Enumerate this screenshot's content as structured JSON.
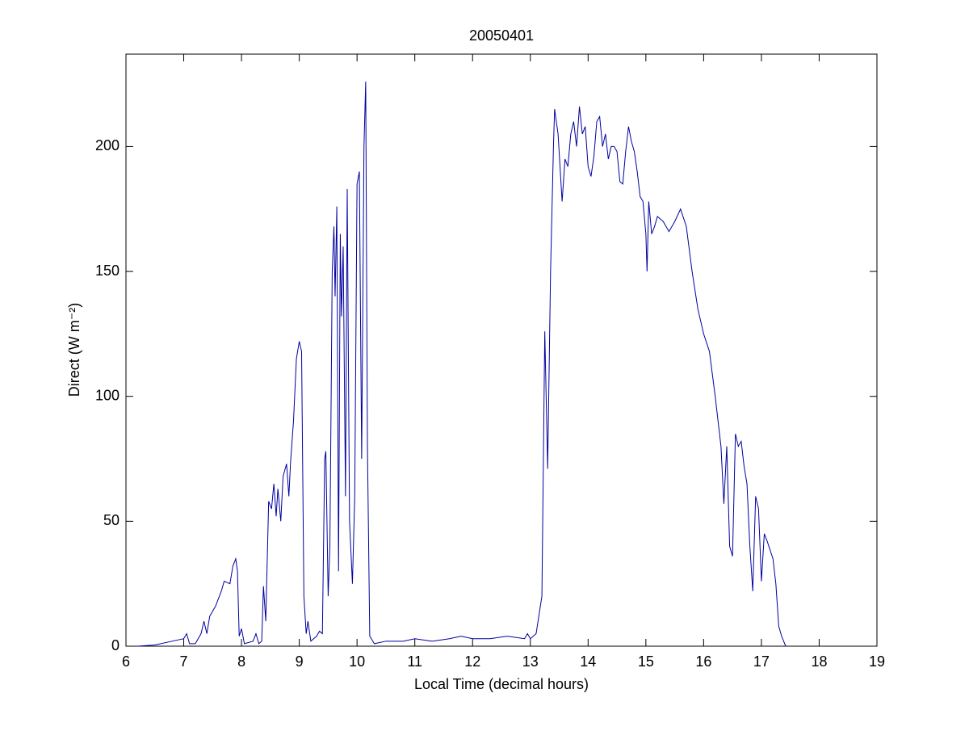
{
  "chart_data": {
    "type": "line",
    "title": "20050401",
    "x_label": "Local Time (decimal hours)",
    "y_label": "Direct (W m⁻²)",
    "xlim": [
      6,
      19
    ],
    "ylim": [
      0,
      237
    ],
    "xticks": [
      6,
      7,
      8,
      9,
      10,
      11,
      12,
      13,
      14,
      15,
      16,
      17,
      18,
      19
    ],
    "yticks": [
      0,
      50,
      100,
      150,
      200
    ],
    "color": "#0000a0",
    "x": [
      6.2,
      6.5,
      6.8,
      7.0,
      7.05,
      7.1,
      7.2,
      7.3,
      7.35,
      7.4,
      7.45,
      7.55,
      7.65,
      7.7,
      7.8,
      7.85,
      7.9,
      7.93,
      7.96,
      8.0,
      8.05,
      8.2,
      8.25,
      8.3,
      8.35,
      8.38,
      8.42,
      8.47,
      8.52,
      8.56,
      8.6,
      8.63,
      8.68,
      8.72,
      8.78,
      8.82,
      8.85,
      8.9,
      8.95,
      9.0,
      9.04,
      9.08,
      9.12,
      9.15,
      9.2,
      9.3,
      9.35,
      9.4,
      9.44,
      9.46,
      9.5,
      9.53,
      9.57,
      9.6,
      9.62,
      9.65,
      9.68,
      9.71,
      9.73,
      9.76,
      9.8,
      9.83,
      9.87,
      9.92,
      9.96,
      10.0,
      10.04,
      10.08,
      10.12,
      10.15,
      10.18,
      10.22,
      10.3,
      10.5,
      10.8,
      11.0,
      11.3,
      11.6,
      11.8,
      12.0,
      12.3,
      12.6,
      12.9,
      12.95,
      13.0,
      13.1,
      13.2,
      13.25,
      13.3,
      13.35,
      13.4,
      13.42,
      13.48,
      13.55,
      13.6,
      13.65,
      13.7,
      13.75,
      13.8,
      13.85,
      13.9,
      13.95,
      14.0,
      14.05,
      14.1,
      14.15,
      14.2,
      14.25,
      14.3,
      14.35,
      14.4,
      14.45,
      14.5,
      14.55,
      14.6,
      14.65,
      14.7,
      14.75,
      14.8,
      14.85,
      14.9,
      14.95,
      15.0,
      15.02,
      15.05,
      15.1,
      15.15,
      15.2,
      15.3,
      15.4,
      15.5,
      15.6,
      15.7,
      15.8,
      15.9,
      15.95,
      16.0,
      16.1,
      16.2,
      16.3,
      16.35,
      16.4,
      16.45,
      16.5,
      16.55,
      16.6,
      16.65,
      16.7,
      16.75,
      16.8,
      16.85,
      16.9,
      16.95,
      17.0,
      17.05,
      17.1,
      17.2,
      17.25,
      17.3,
      17.35,
      17.42
    ],
    "values": [
      0,
      0.5,
      2,
      3,
      5,
      1,
      1,
      5,
      10,
      5,
      12,
      16,
      22,
      26,
      25,
      32,
      35,
      30,
      4,
      7,
      1,
      2,
      5,
      1,
      2,
      24,
      10,
      58,
      55,
      65,
      52,
      63,
      50,
      68,
      73,
      60,
      74,
      90,
      115,
      122,
      118,
      20,
      5,
      10,
      2,
      4,
      6,
      5,
      75,
      78,
      20,
      40,
      150,
      168,
      140,
      176,
      30,
      165,
      132,
      160,
      60,
      183,
      50,
      25,
      60,
      185,
      190,
      75,
      200,
      226,
      80,
      4,
      1,
      2,
      2,
      3,
      2,
      3,
      4,
      3,
      3,
      4,
      3,
      5,
      3,
      5,
      20,
      126,
      71,
      150,
      200,
      215,
      205,
      178,
      195,
      192,
      205,
      210,
      200,
      216,
      205,
      208,
      192,
      188,
      196,
      210,
      212,
      200,
      205,
      195,
      200,
      200,
      198,
      186,
      185,
      198,
      208,
      202,
      198,
      190,
      180,
      178,
      165,
      150,
      178,
      165,
      168,
      172,
      170,
      166,
      170,
      175,
      168,
      150,
      135,
      130,
      125,
      118,
      100,
      80,
      57,
      80,
      40,
      36,
      85,
      80,
      82,
      72,
      65,
      40,
      22,
      60,
      55,
      26,
      45,
      42,
      35,
      25,
      8,
      4,
      0
    ]
  }
}
